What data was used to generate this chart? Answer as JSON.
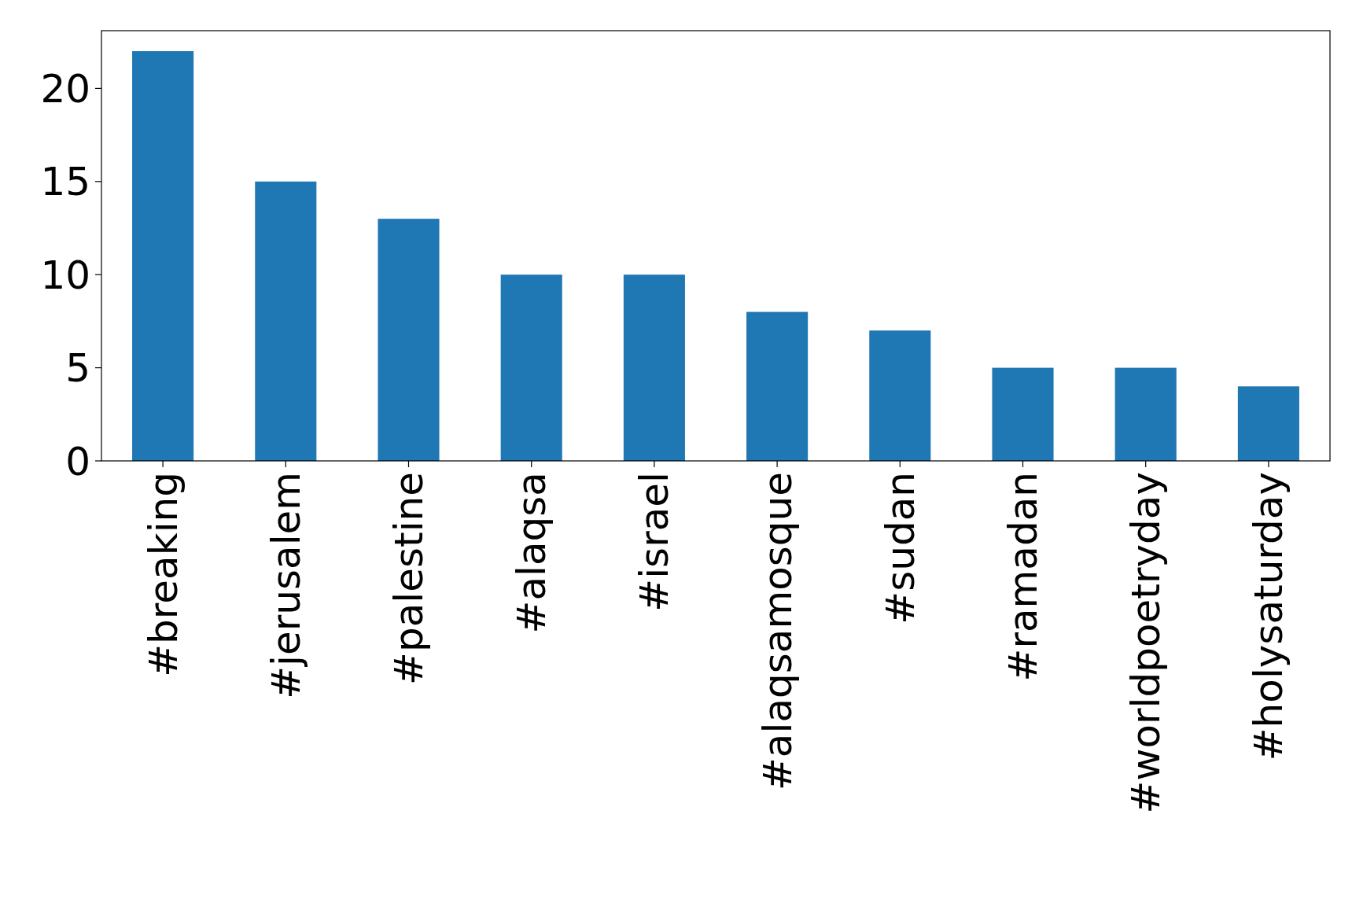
{
  "chart_data": {
    "type": "bar",
    "categories": [
      "#breaking",
      "#jerusalem",
      "#palestine",
      "#alaqsa",
      "#israel",
      "#alaqsamosque",
      "#sudan",
      "#ramadan",
      "#worldpoetryday",
      "#holysaturday"
    ],
    "values": [
      22,
      15,
      13,
      10,
      10,
      8,
      7,
      5,
      5,
      4
    ],
    "color": "#1f77b4",
    "ylim": [
      0,
      23.1
    ],
    "yticks": [
      0,
      5,
      10,
      15,
      20
    ]
  }
}
